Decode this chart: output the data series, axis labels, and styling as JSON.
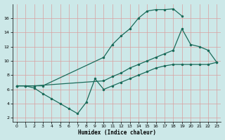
{
  "xlabel": "Humidex (Indice chaleur)",
  "bg_color": "#cce8e8",
  "grid_color": "#d8a0a0",
  "line_color": "#1a6b5a",
  "xlim": [
    -0.5,
    23.5
  ],
  "ylim": [
    1.5,
    18.0
  ],
  "xticks": [
    0,
    1,
    2,
    3,
    4,
    5,
    6,
    7,
    8,
    9,
    10,
    11,
    12,
    13,
    14,
    15,
    16,
    17,
    18,
    19,
    20,
    21,
    22,
    23
  ],
  "yticks": [
    2,
    4,
    6,
    8,
    10,
    12,
    14,
    16
  ],
  "curve1_x": [
    0,
    1,
    2,
    3,
    10,
    11,
    12,
    13,
    14,
    15,
    16,
    17,
    18,
    19
  ],
  "curve1_y": [
    6.5,
    6.5,
    6.5,
    6.5,
    10.5,
    12.3,
    13.5,
    14.5,
    16.0,
    17.0,
    17.2,
    17.2,
    17.3,
    16.3
  ],
  "curve2_x": [
    0,
    1,
    2,
    10,
    11,
    12,
    13,
    14,
    15,
    16,
    17,
    18,
    19,
    20,
    21,
    22,
    23
  ],
  "curve2_y": [
    6.5,
    6.5,
    6.5,
    7.2,
    7.8,
    8.3,
    9.0,
    9.5,
    10.0,
    10.5,
    11.0,
    11.5,
    14.5,
    12.3,
    12.0,
    11.5,
    9.8
  ],
  "curve3_x": [
    0,
    1,
    2,
    3,
    4,
    5,
    6,
    7,
    8,
    9,
    10,
    11,
    12,
    13,
    14,
    15,
    16,
    17,
    18,
    19,
    20,
    21,
    22,
    23
  ],
  "curve3_y": [
    6.5,
    6.5,
    6.2,
    5.4,
    4.7,
    4.0,
    3.3,
    2.6,
    4.2,
    7.5,
    6.0,
    6.5,
    7.0,
    7.5,
    8.0,
    8.5,
    9.0,
    9.3,
    9.5,
    9.5,
    9.5,
    9.5,
    9.5,
    9.8
  ]
}
